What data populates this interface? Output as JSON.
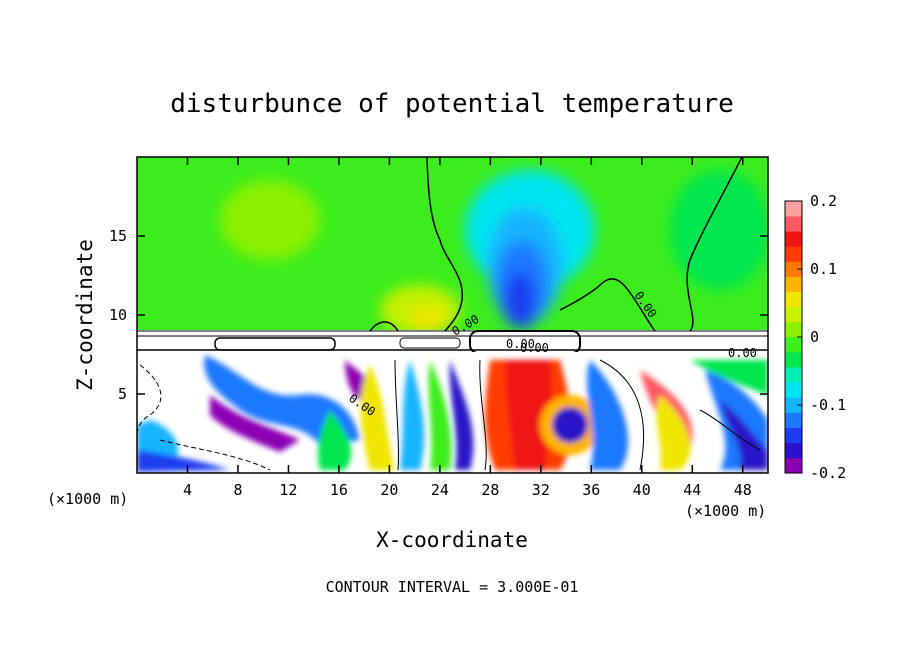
{
  "chart_data": {
    "type": "heatmap",
    "title": "disturbunce of potential temperature",
    "xlabel": "X-coordinate",
    "ylabel": "Z-coordinate",
    "x_unit_left": "(×1000 m)",
    "x_unit_right": "(×1000 m)",
    "xlim": [
      0,
      50
    ],
    "ylim": [
      0,
      20
    ],
    "x_ticks": [
      4,
      8,
      12,
      16,
      20,
      24,
      28,
      32,
      36,
      40,
      44,
      48
    ],
    "y_ticks": [
      5,
      10,
      15
    ],
    "colorbar": {
      "min": -0.2,
      "max": 0.2,
      "ticks": [
        "0.2",
        "0.1",
        "0",
        "-0.1",
        "-0.2"
      ],
      "colors": [
        "#8c00b4",
        "#2b12c8",
        "#1e3cf0",
        "#1e78ff",
        "#14b4ff",
        "#00e6f0",
        "#00f0b4",
        "#00e650",
        "#3cf01e",
        "#8cf000",
        "#c8f000",
        "#f0e600",
        "#ffb400",
        "#ff7800",
        "#ff3c00",
        "#f01414",
        "#ff5a64",
        "#ffa0a0"
      ]
    },
    "contour_labels": [
      "0.00",
      "0.00",
      "0.00",
      "0.00",
      "0.00",
      "0.00"
    ],
    "footer": "CONTOUR INTERVAL = 3.000E-01"
  }
}
